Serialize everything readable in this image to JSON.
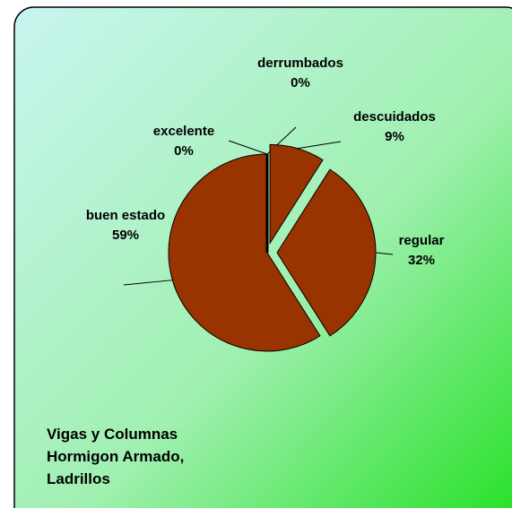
{
  "chart_data": {
    "type": "pie",
    "title": "Vigas y Columnas Hormigon Armado, Ladrillos",
    "categories": [
      "derrumbados",
      "descuidados",
      "regular",
      "buen estado",
      "excelente"
    ],
    "values": [
      0,
      9,
      32,
      59,
      0
    ],
    "value_labels": [
      "0%",
      "9%",
      "32%",
      "59%",
      "0%"
    ],
    "explode": [
      false,
      true,
      true,
      false,
      false
    ],
    "color": "#993300"
  }
}
